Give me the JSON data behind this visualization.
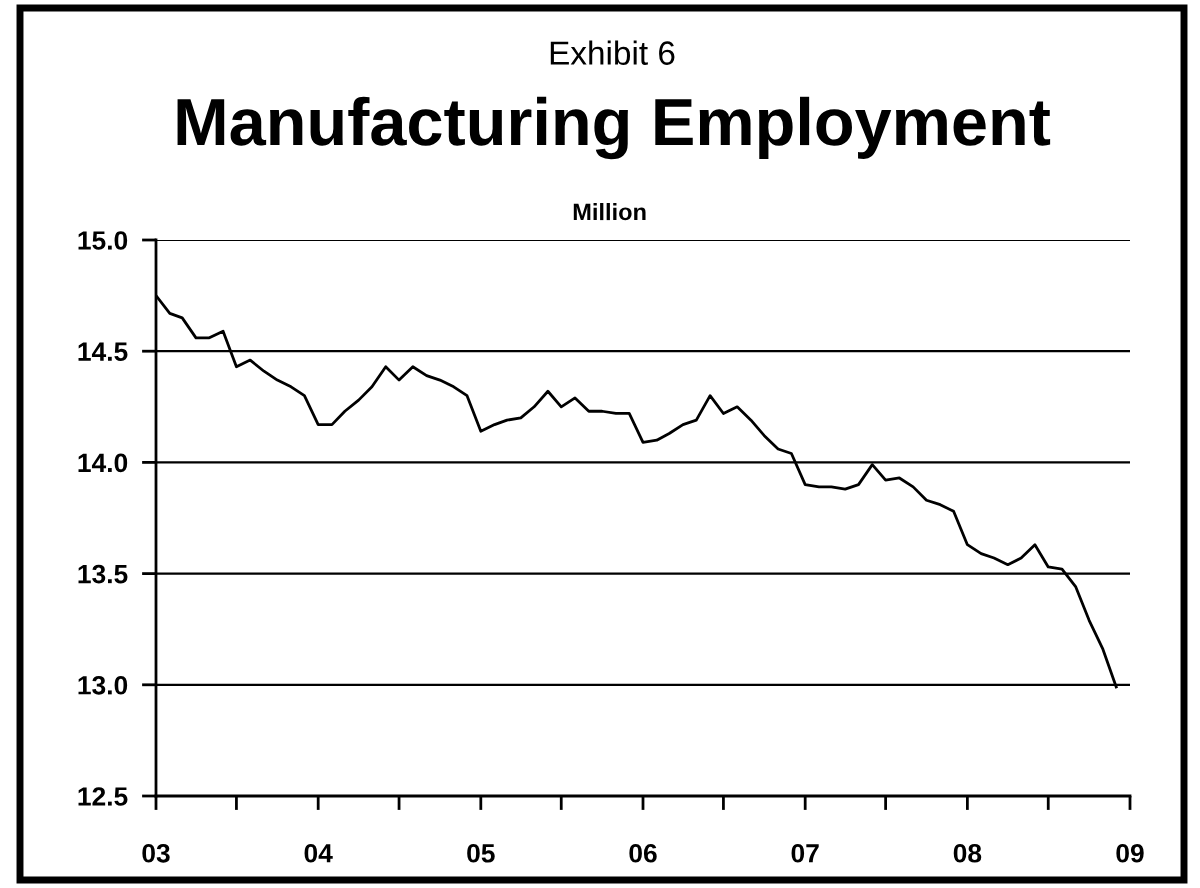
{
  "chart_data": {
    "type": "line",
    "title": "Manufacturing Employment",
    "ylabel": "Million",
    "annotations": [
      "Exhibit 6"
    ],
    "x": [
      "2003-01",
      "2003-02",
      "2003-03",
      "2003-04",
      "2003-05",
      "2003-06",
      "2003-07",
      "2003-08",
      "2003-09",
      "2003-10",
      "2003-11",
      "2003-12",
      "2004-01",
      "2004-02",
      "2004-03",
      "2004-04",
      "2004-05",
      "2004-06",
      "2004-07",
      "2004-08",
      "2004-09",
      "2004-10",
      "2004-11",
      "2004-12",
      "2005-01",
      "2005-02",
      "2005-03",
      "2005-04",
      "2005-05",
      "2005-06",
      "2005-07",
      "2005-08",
      "2005-09",
      "2005-10",
      "2005-11",
      "2005-12",
      "2006-01",
      "2006-02",
      "2006-03",
      "2006-04",
      "2006-05",
      "2006-06",
      "2006-07",
      "2006-08",
      "2006-09",
      "2006-10",
      "2006-11",
      "2006-12",
      "2007-01",
      "2007-02",
      "2007-03",
      "2007-04",
      "2007-05",
      "2007-06",
      "2007-07",
      "2007-08",
      "2007-09",
      "2007-10",
      "2007-11",
      "2007-12",
      "2008-01",
      "2008-02",
      "2008-03",
      "2008-04",
      "2008-05",
      "2008-06",
      "2008-07",
      "2008-08",
      "2008-09",
      "2008-10",
      "2008-11",
      "2008-12"
    ],
    "series": [
      {
        "color": "#000000",
        "values": [
          14.75,
          14.67,
          14.65,
          14.56,
          14.56,
          14.59,
          14.43,
          14.46,
          14.41,
          14.37,
          14.34,
          14.3,
          14.17,
          14.17,
          14.23,
          14.28,
          14.34,
          14.43,
          14.37,
          14.43,
          14.39,
          14.37,
          14.34,
          14.3,
          14.14,
          14.17,
          14.19,
          14.2,
          14.25,
          14.32,
          14.25,
          14.29,
          14.23,
          14.23,
          14.22,
          14.22,
          14.09,
          14.1,
          14.13,
          14.17,
          14.19,
          14.3,
          14.22,
          14.25,
          14.19,
          14.12,
          14.06,
          14.04,
          13.9,
          13.89,
          13.89,
          13.88,
          13.9,
          13.99,
          13.92,
          13.93,
          13.89,
          13.83,
          13.81,
          13.78,
          13.63,
          13.59,
          13.57,
          13.54,
          13.57,
          13.63,
          13.53,
          13.52,
          13.44,
          13.29,
          13.16,
          12.99
        ]
      }
    ],
    "xlim": [
      "2003-01",
      "2009-01"
    ],
    "xticks": [
      {
        "value": "2003-01",
        "label": "03"
      },
      {
        "value": "2003-07",
        "label": null
      },
      {
        "value": "2004-01",
        "label": "04"
      },
      {
        "value": "2004-07",
        "label": null
      },
      {
        "value": "2005-01",
        "label": "05"
      },
      {
        "value": "2005-07",
        "label": null
      },
      {
        "value": "2006-01",
        "label": "06"
      },
      {
        "value": "2006-07",
        "label": null
      },
      {
        "value": "2007-01",
        "label": "07"
      },
      {
        "value": "2007-07",
        "label": null
      },
      {
        "value": "2008-01",
        "label": "08"
      },
      {
        "value": "2008-07",
        "label": null
      },
      {
        "value": "2009-01",
        "label": "09"
      }
    ],
    "ylim": [
      12.5,
      15
    ],
    "yticks": [
      12.5,
      {
        "value": 13,
        "label": "13.0"
      },
      13.5,
      {
        "value": 14,
        "label": "14.0"
      },
      14.5,
      {
        "value": 15,
        "label": "15.0"
      }
    ],
    "grid": "y"
  }
}
